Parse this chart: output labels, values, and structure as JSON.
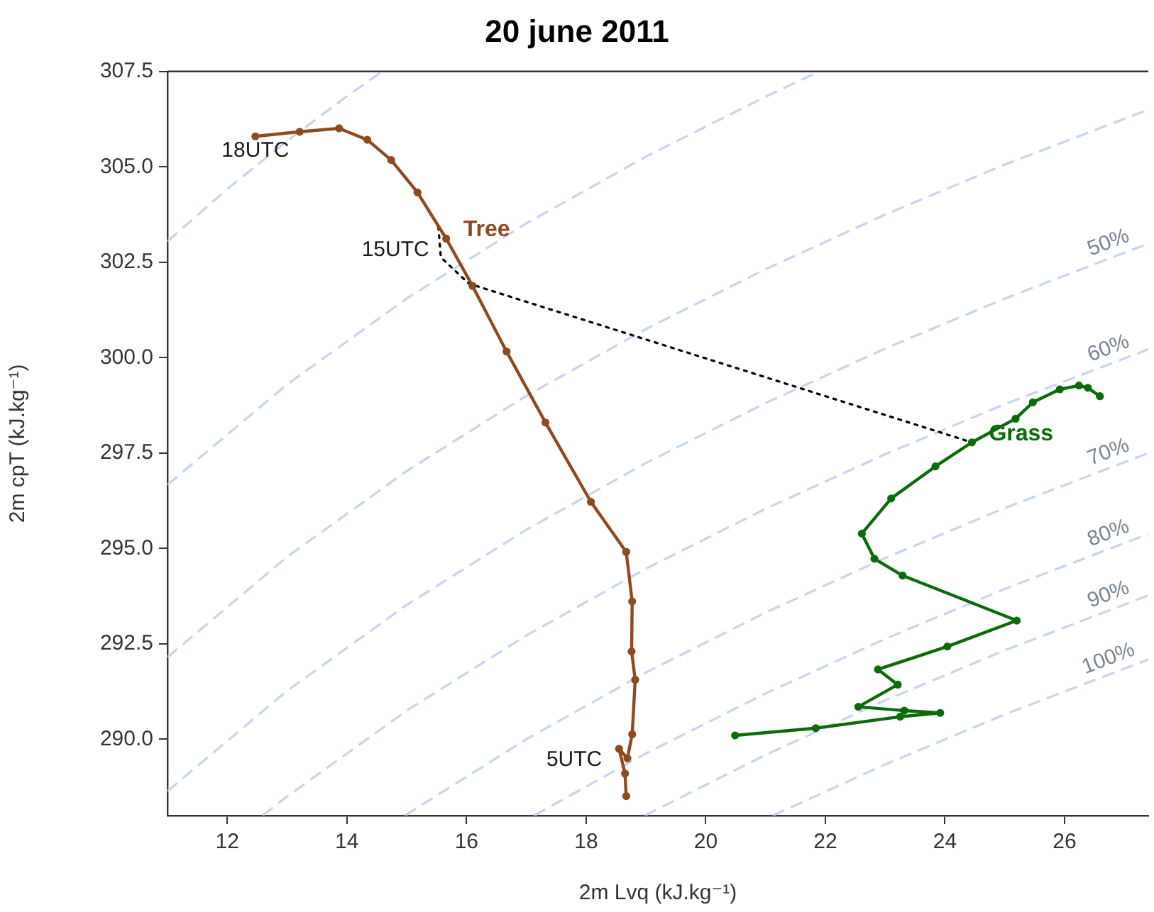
{
  "chart_data": {
    "type": "line",
    "title": "20 june 2011",
    "xlabel": "2m Lvq (kJ.kg⁻¹)",
    "ylabel": "2m cpT (kJ.kg⁻¹)",
    "xlim": [
      11,
      27.4
    ],
    "ylim": [
      288,
      307.5
    ],
    "xticks": [
      12,
      14,
      16,
      18,
      20,
      22,
      24,
      26
    ],
    "yticks": [
      {
        "value": 290,
        "label": "290.0"
      },
      {
        "value": 292.5,
        "label": "292.5"
      },
      {
        "value": 295,
        "label": "295.0"
      },
      {
        "value": 297.5,
        "label": "297.5"
      },
      {
        "value": 300,
        "label": "300.0"
      },
      {
        "value": 302.5,
        "label": "302.5"
      },
      {
        "value": 305,
        "label": "305.0"
      },
      {
        "value": 307.5,
        "label": "307.5"
      }
    ],
    "grid": false,
    "legend": false,
    "annotations": [
      {
        "text": "18UTC",
        "x": 12.47,
        "y": 305.8
      },
      {
        "text": "15UTC",
        "x": 15.66,
        "y": 303.12
      },
      {
        "text": "5UTC",
        "x": 18.55,
        "y": 289.75
      }
    ],
    "series": [
      {
        "name": "Tree",
        "color": "#8c4b1f",
        "marker": "circle",
        "line_style": "solid",
        "x": [
          18.67,
          18.65,
          18.55,
          18.69,
          18.77,
          18.82,
          18.76,
          18.77,
          18.67,
          18.08,
          17.32,
          16.67,
          16.1,
          15.66,
          15.18,
          14.74,
          14.34,
          13.87,
          13.21,
          12.47
        ],
        "values": [
          288.51,
          289.1,
          289.75,
          289.5,
          290.13,
          291.56,
          292.3,
          293.61,
          294.91,
          296.22,
          298.3,
          300.16,
          301.88,
          303.12,
          304.33,
          305.18,
          305.71,
          306.01,
          305.92,
          305.8
        ]
      },
      {
        "name": "Grass",
        "color": "#0b6b0b",
        "marker": "circle",
        "line_style": "solid",
        "x": [
          20.49,
          21.84,
          23.25,
          23.92,
          23.32,
          22.55,
          23.21,
          22.88,
          24.04,
          25.2,
          23.29,
          22.82,
          22.61,
          23.1,
          23.84,
          24.45,
          25.18,
          25.47,
          25.92,
          26.24,
          26.39,
          26.59
        ],
        "values": [
          290.1,
          290.29,
          290.59,
          290.69,
          290.75,
          290.85,
          291.43,
          291.83,
          292.43,
          293.11,
          294.29,
          294.73,
          295.39,
          296.31,
          297.15,
          297.78,
          298.4,
          298.83,
          299.17,
          299.27,
          299.21,
          298.99
        ]
      },
      {
        "color": "#000000",
        "marker": "none",
        "line_style": "dotted",
        "x": [
          15.53,
          15.57,
          16.04,
          24.45
        ],
        "values": [
          303.43,
          302.63,
          301.94,
          297.78
        ]
      },
      {
        "color": "#c5d5ef",
        "marker": "none",
        "line_style": "dashed",
        "x": [
          11,
          12,
          13,
          14,
          14.59
        ],
        "values": [
          303.05,
          304.42,
          305.68,
          306.85,
          307.5
        ]
      },
      {
        "color": "#c5d5ef",
        "marker": "none",
        "line_style": "dashed",
        "x": [
          11,
          13,
          15,
          17,
          19,
          21,
          21.9
        ],
        "values": [
          296.67,
          299.3,
          301.55,
          303.52,
          305.27,
          306.84,
          307.5
        ]
      },
      {
        "color": "#c5d5ef",
        "marker": "none",
        "line_style": "dashed",
        "x": [
          11,
          13,
          15,
          17,
          19,
          21,
          23,
          25,
          27.4
        ],
        "values": [
          292.15,
          294.78,
          297.03,
          299.0,
          300.75,
          302.32,
          303.75,
          305.06,
          306.5
        ]
      },
      {
        "name": "50%",
        "color": "#c5d5ef",
        "marker": "none",
        "line_style": "dashed",
        "x": [
          11,
          13,
          15,
          17,
          19,
          21,
          23,
          25,
          27.4
        ],
        "values": [
          288.64,
          291.27,
          293.52,
          295.49,
          297.24,
          298.81,
          300.24,
          301.55,
          302.99
        ]
      },
      {
        "name": "60%",
        "color": "#c5d5ef",
        "marker": "none",
        "line_style": "dashed",
        "x": [
          12.59,
          13,
          15,
          17,
          19,
          21,
          23,
          25,
          27.4
        ],
        "values": [
          288,
          288.5,
          290.75,
          292.72,
          294.47,
          296.04,
          297.47,
          298.78,
          300.22
        ]
      },
      {
        "name": "70%",
        "color": "#c5d5ef",
        "marker": "none",
        "line_style": "dashed",
        "x": [
          14.97,
          17,
          19,
          21,
          23,
          25,
          27.4
        ],
        "values": [
          288,
          290.0,
          291.75,
          293.32,
          294.75,
          296.06,
          297.5
        ]
      },
      {
        "name": "80%",
        "color": "#c5d5ef",
        "marker": "none",
        "line_style": "dashed",
        "x": [
          17.13,
          19,
          21,
          23,
          25,
          27.4
        ],
        "values": [
          288,
          289.63,
          291.2,
          292.63,
          293.94,
          295.38
        ]
      },
      {
        "name": "90%",
        "color": "#c5d5ef",
        "marker": "none",
        "line_style": "dashed",
        "x": [
          18.98,
          21,
          23,
          25,
          27.4
        ],
        "values": [
          288,
          289.59,
          291.02,
          292.33,
          293.77
        ]
      },
      {
        "name": "100%",
        "color": "#c5d5ef",
        "marker": "none",
        "line_style": "dashed",
        "x": [
          21.12,
          23,
          25,
          27.4
        ],
        "values": [
          288,
          289.34,
          290.65,
          292.09
        ]
      }
    ]
  }
}
